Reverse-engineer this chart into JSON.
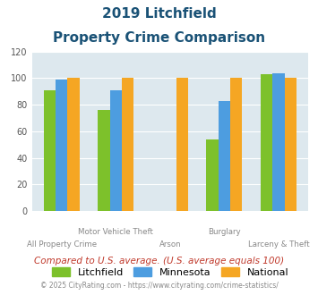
{
  "title_line1": "2019 Litchfield",
  "title_line2": "Property Crime Comparison",
  "categories": [
    "All Property Crime",
    "Motor Vehicle Theft",
    "Arson",
    "Burglary",
    "Larceny & Theft"
  ],
  "x_labels_top": [
    "",
    "Motor Vehicle Theft",
    "",
    "Burglary",
    ""
  ],
  "x_labels_bottom": [
    "All Property Crime",
    "",
    "Arson",
    "",
    "Larceny & Theft"
  ],
  "litchfield": [
    91,
    76,
    null,
    54,
    103
  ],
  "minnesota": [
    99,
    91,
    null,
    83,
    104
  ],
  "national": [
    100,
    100,
    100,
    100,
    100
  ],
  "color_litchfield": "#7dc12b",
  "color_minnesota": "#4d9de0",
  "color_national": "#f5a623",
  "ylim": [
    0,
    120
  ],
  "yticks": [
    0,
    20,
    40,
    60,
    80,
    100,
    120
  ],
  "bg_color": "#dde8ee",
  "title_color": "#1a5276",
  "footer_text": "Compared to U.S. average. (U.S. average equals 100)",
  "footer_color": "#c0392b",
  "credit_text": "© 2025 CityRating.com - https://www.cityrating.com/crime-statistics/",
  "credit_color": "#888888",
  "legend_labels": [
    "Litchfield",
    "Minnesota",
    "National"
  ]
}
